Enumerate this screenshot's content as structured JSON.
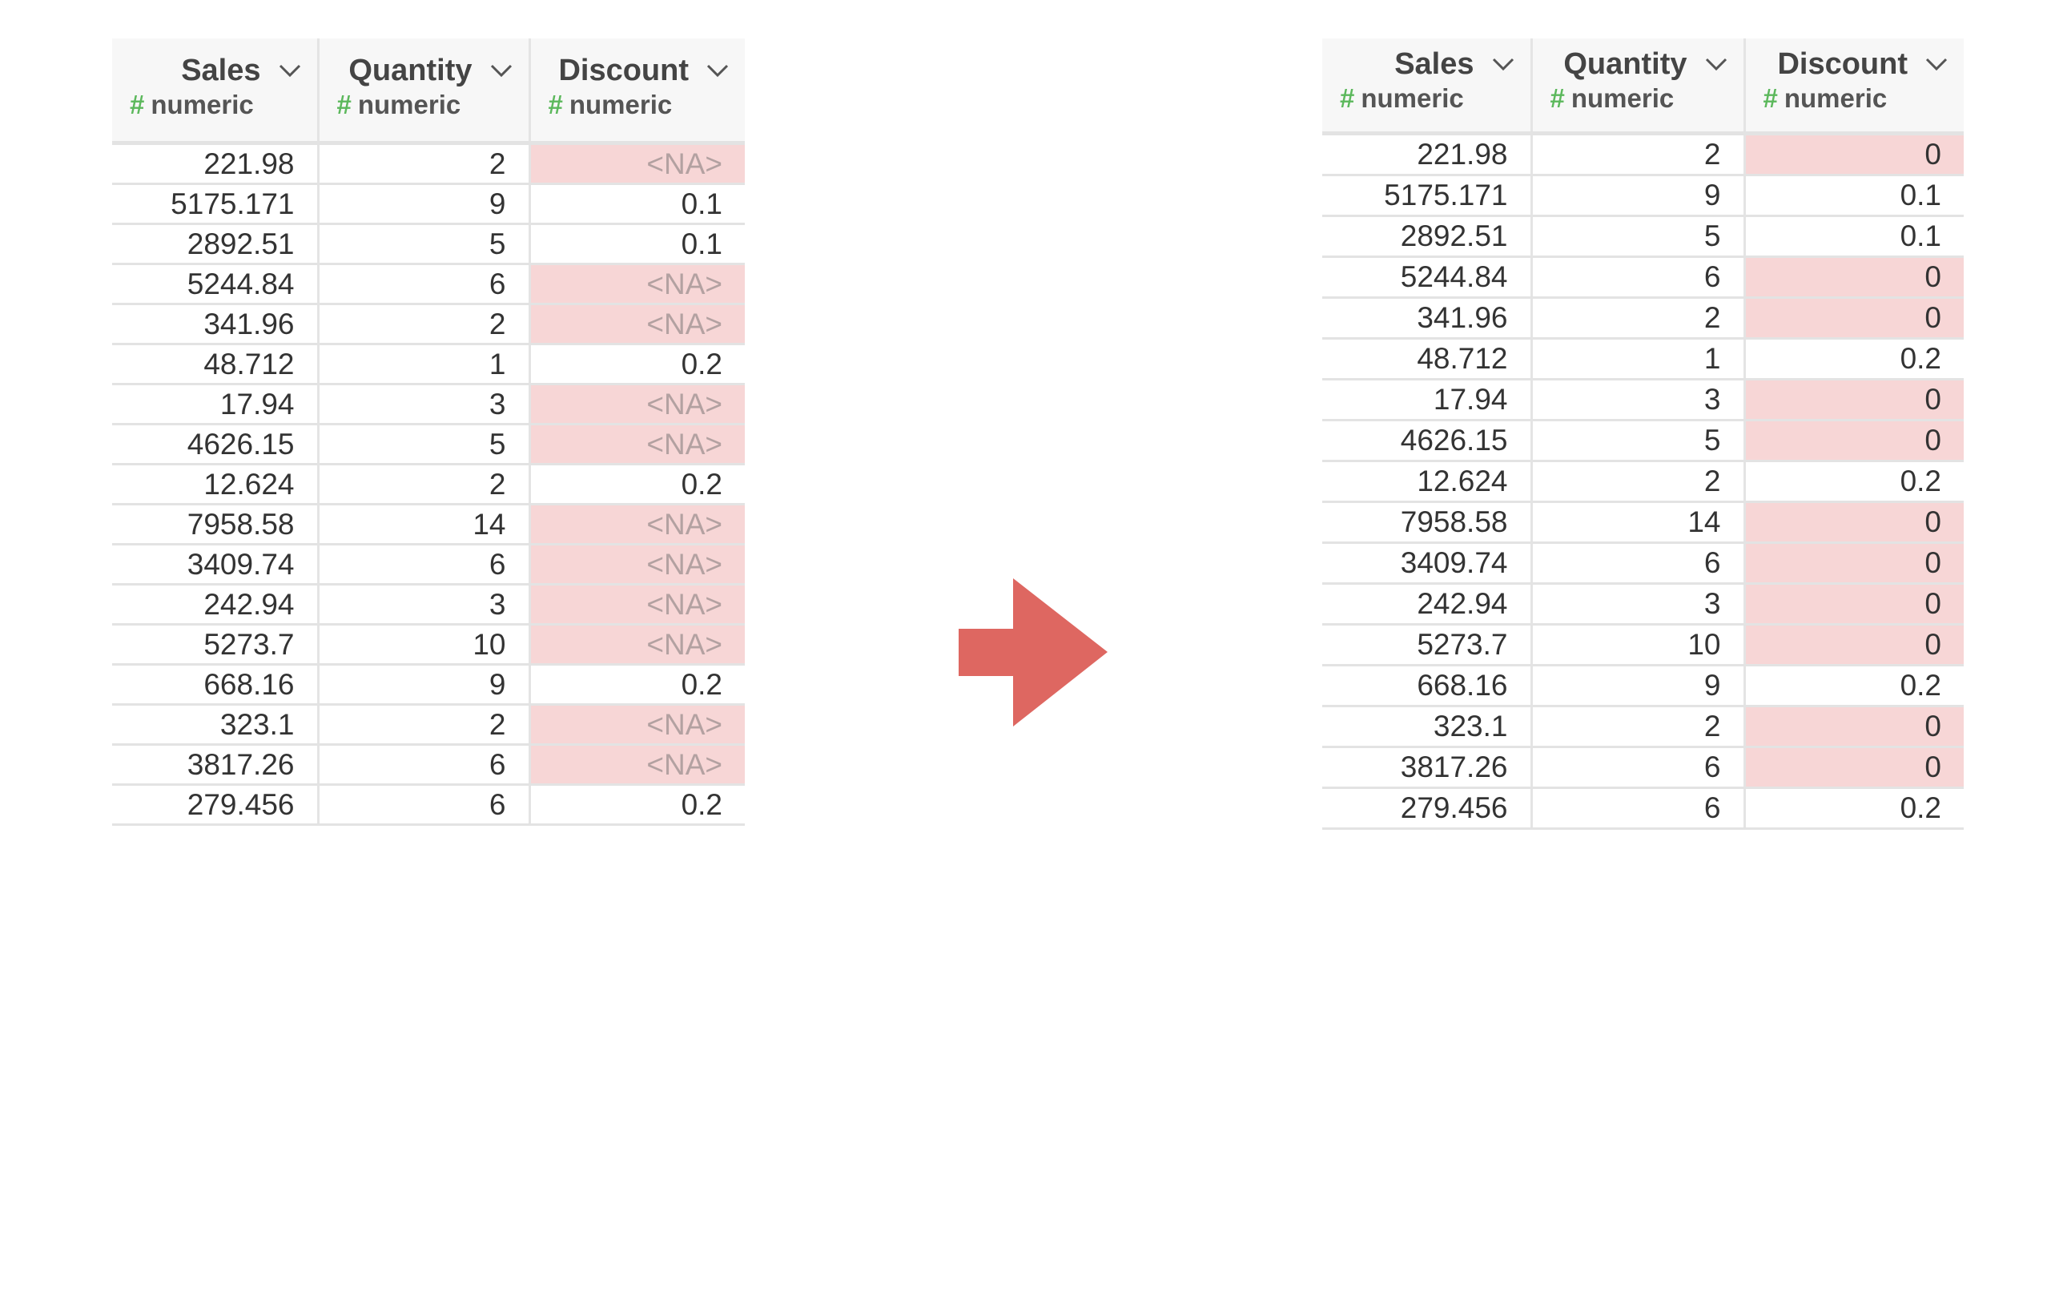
{
  "colors": {
    "highlight": "#f7d6d6",
    "type_hash": "#5cb85c",
    "arrow": "#de6761"
  },
  "icons": {
    "column_menu": "chevron-down-icon",
    "transform": "right-arrow-icon"
  },
  "before": {
    "columns": [
      {
        "name": "Sales",
        "type": "numeric",
        "hash": "#"
      },
      {
        "name": "Quantity",
        "type": "numeric",
        "hash": "#"
      },
      {
        "name": "Discount",
        "type": "numeric",
        "hash": "#"
      }
    ],
    "rows": [
      {
        "sales": "221.98",
        "quantity": "2",
        "discount": "<NA>",
        "highlight": true
      },
      {
        "sales": "5175.171",
        "quantity": "9",
        "discount": "0.1",
        "highlight": false
      },
      {
        "sales": "2892.51",
        "quantity": "5",
        "discount": "0.1",
        "highlight": false
      },
      {
        "sales": "5244.84",
        "quantity": "6",
        "discount": "<NA>",
        "highlight": true
      },
      {
        "sales": "341.96",
        "quantity": "2",
        "discount": "<NA>",
        "highlight": true
      },
      {
        "sales": "48.712",
        "quantity": "1",
        "discount": "0.2",
        "highlight": false
      },
      {
        "sales": "17.94",
        "quantity": "3",
        "discount": "<NA>",
        "highlight": true
      },
      {
        "sales": "4626.15",
        "quantity": "5",
        "discount": "<NA>",
        "highlight": true
      },
      {
        "sales": "12.624",
        "quantity": "2",
        "discount": "0.2",
        "highlight": false
      },
      {
        "sales": "7958.58",
        "quantity": "14",
        "discount": "<NA>",
        "highlight": true
      },
      {
        "sales": "3409.74",
        "quantity": "6",
        "discount": "<NA>",
        "highlight": true
      },
      {
        "sales": "242.94",
        "quantity": "3",
        "discount": "<NA>",
        "highlight": true
      },
      {
        "sales": "5273.7",
        "quantity": "10",
        "discount": "<NA>",
        "highlight": true
      },
      {
        "sales": "668.16",
        "quantity": "9",
        "discount": "0.2",
        "highlight": false
      },
      {
        "sales": "323.1",
        "quantity": "2",
        "discount": "<NA>",
        "highlight": true
      },
      {
        "sales": "3817.26",
        "quantity": "6",
        "discount": "<NA>",
        "highlight": true
      },
      {
        "sales": "279.456",
        "quantity": "6",
        "discount": "0.2",
        "highlight": false
      }
    ]
  },
  "after": {
    "columns": [
      {
        "name": "Sales",
        "type": "numeric",
        "hash": "#"
      },
      {
        "name": "Quantity",
        "type": "numeric",
        "hash": "#"
      },
      {
        "name": "Discount",
        "type": "numeric",
        "hash": "#"
      }
    ],
    "rows": [
      {
        "sales": "221.98",
        "quantity": "2",
        "discount": "0",
        "highlight": true
      },
      {
        "sales": "5175.171",
        "quantity": "9",
        "discount": "0.1",
        "highlight": false
      },
      {
        "sales": "2892.51",
        "quantity": "5",
        "discount": "0.1",
        "highlight": false
      },
      {
        "sales": "5244.84",
        "quantity": "6",
        "discount": "0",
        "highlight": true
      },
      {
        "sales": "341.96",
        "quantity": "2",
        "discount": "0",
        "highlight": true
      },
      {
        "sales": "48.712",
        "quantity": "1",
        "discount": "0.2",
        "highlight": false
      },
      {
        "sales": "17.94",
        "quantity": "3",
        "discount": "0",
        "highlight": true
      },
      {
        "sales": "4626.15",
        "quantity": "5",
        "discount": "0",
        "highlight": true
      },
      {
        "sales": "12.624",
        "quantity": "2",
        "discount": "0.2",
        "highlight": false
      },
      {
        "sales": "7958.58",
        "quantity": "14",
        "discount": "0",
        "highlight": true
      },
      {
        "sales": "3409.74",
        "quantity": "6",
        "discount": "0",
        "highlight": true
      },
      {
        "sales": "242.94",
        "quantity": "3",
        "discount": "0",
        "highlight": true
      },
      {
        "sales": "5273.7",
        "quantity": "10",
        "discount": "0",
        "highlight": true
      },
      {
        "sales": "668.16",
        "quantity": "9",
        "discount": "0.2",
        "highlight": false
      },
      {
        "sales": "323.1",
        "quantity": "2",
        "discount": "0",
        "highlight": true
      },
      {
        "sales": "3817.26",
        "quantity": "6",
        "discount": "0",
        "highlight": true
      },
      {
        "sales": "279.456",
        "quantity": "6",
        "discount": "0.2",
        "highlight": false
      }
    ]
  }
}
